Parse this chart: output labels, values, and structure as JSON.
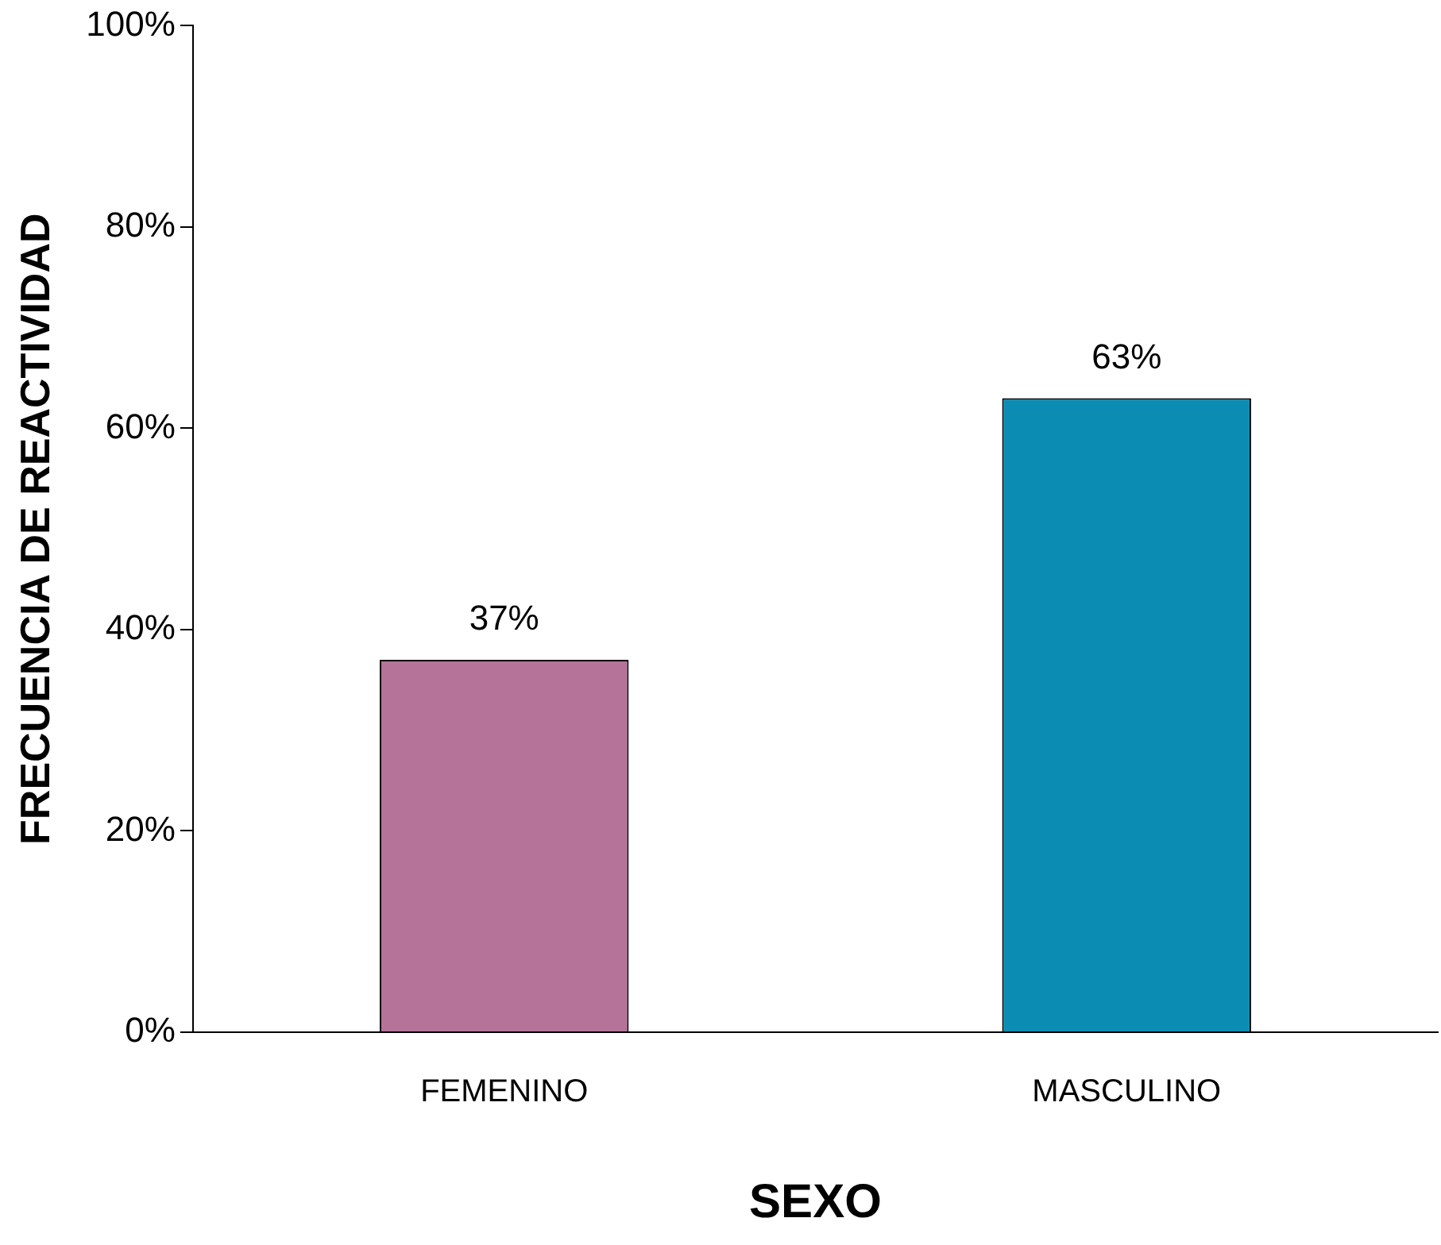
{
  "chart_data": {
    "type": "bar",
    "xlabel": "SEXO",
    "ylabel": "FRECUENCIA DE REACTIVIDAD",
    "categories": [
      "FEMENINO",
      "MASCULINO"
    ],
    "values": [
      37,
      63
    ],
    "colors": [
      "#b5739a",
      "#0b8db3"
    ],
    "value_labels": [
      "37%",
      "63%"
    ],
    "ylim": [
      0,
      100
    ],
    "yticks": [
      {
        "value": 0,
        "label": "0%"
      },
      {
        "value": 20,
        "label": "20%"
      },
      {
        "value": 40,
        "label": "40%"
      },
      {
        "value": 60,
        "label": "60%"
      },
      {
        "value": 80,
        "label": "80%"
      },
      {
        "value": 100,
        "label": "100%"
      }
    ],
    "grid": false,
    "legend": false
  }
}
